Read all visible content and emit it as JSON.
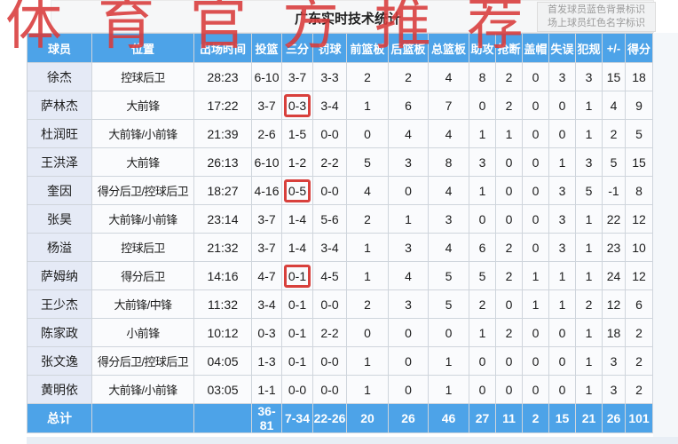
{
  "watermark": "体育官方推荐",
  "header": {
    "title": "广东实时技术统计",
    "legend": [
      "首发球员蓝色背景标识",
      "场上球员红色名字标识"
    ]
  },
  "colors": {
    "accent": "#4da3e8",
    "highlight_red": "#d8403c",
    "name_cell_bg": "#e5eaf6",
    "watermark_red": "#d93b3b"
  },
  "table": {
    "columns": [
      "球员",
      "位置",
      "出场时间",
      "投篮",
      "三分",
      "罚球",
      "前篮板",
      "后篮板",
      "总篮板",
      "助攻",
      "抢断",
      "盖帽",
      "失误",
      "犯规",
      "+/-",
      "得分"
    ],
    "rows": [
      {
        "name": "徐杰",
        "position": "控球后卫",
        "time": "28:23",
        "fg": "6-10",
        "three": "3-7",
        "three_box": false,
        "ft": "3-3",
        "oreb": "2",
        "dreb": "2",
        "reb": "4",
        "ast": "8",
        "stl": "2",
        "blk": "0",
        "to": "3",
        "pf": "3",
        "pm": "15",
        "pts": "18"
      },
      {
        "name": "萨林杰",
        "position": "大前锋",
        "time": "17:22",
        "fg": "3-7",
        "three": "0-3",
        "three_box": true,
        "ft": "3-4",
        "oreb": "1",
        "dreb": "6",
        "reb": "7",
        "ast": "0",
        "stl": "2",
        "blk": "0",
        "to": "0",
        "pf": "1",
        "pm": "4",
        "pts": "9"
      },
      {
        "name": "杜润旺",
        "position": "大前锋/小前锋",
        "time": "21:39",
        "fg": "2-6",
        "three": "1-5",
        "three_box": false,
        "ft": "0-0",
        "oreb": "0",
        "dreb": "4",
        "reb": "4",
        "ast": "1",
        "stl": "1",
        "blk": "0",
        "to": "0",
        "pf": "1",
        "pm": "2",
        "pts": "5"
      },
      {
        "name": "王洪泽",
        "position": "大前锋",
        "time": "26:13",
        "fg": "6-10",
        "three": "1-2",
        "three_box": false,
        "ft": "2-2",
        "oreb": "5",
        "dreb": "3",
        "reb": "8",
        "ast": "3",
        "stl": "0",
        "blk": "0",
        "to": "1",
        "pf": "3",
        "pm": "5",
        "pts": "15"
      },
      {
        "name": "奎因",
        "position": "得分后卫/控球后卫",
        "time": "18:27",
        "fg": "4-16",
        "three": "0-5",
        "three_box": true,
        "ft": "0-0",
        "oreb": "4",
        "dreb": "0",
        "reb": "4",
        "ast": "1",
        "stl": "0",
        "blk": "0",
        "to": "3",
        "pf": "5",
        "pm": "-1",
        "pts": "8"
      },
      {
        "name": "张昊",
        "position": "大前锋/小前锋",
        "time": "23:14",
        "fg": "3-7",
        "three": "1-4",
        "three_box": false,
        "ft": "5-6",
        "oreb": "2",
        "dreb": "1",
        "reb": "3",
        "ast": "0",
        "stl": "0",
        "blk": "0",
        "to": "3",
        "pf": "1",
        "pm": "22",
        "pts": "12"
      },
      {
        "name": "杨溢",
        "position": "控球后卫",
        "time": "21:32",
        "fg": "3-7",
        "three": "1-4",
        "three_box": false,
        "ft": "3-4",
        "oreb": "1",
        "dreb": "3",
        "reb": "4",
        "ast": "6",
        "stl": "2",
        "blk": "0",
        "to": "3",
        "pf": "1",
        "pm": "23",
        "pts": "10"
      },
      {
        "name": "萨姆纳",
        "position": "得分后卫",
        "time": "14:16",
        "fg": "4-7",
        "three": "0-1",
        "three_box": true,
        "ft": "4-5",
        "oreb": "1",
        "dreb": "4",
        "reb": "5",
        "ast": "5",
        "stl": "2",
        "blk": "1",
        "to": "1",
        "pf": "1",
        "pm": "24",
        "pts": "12"
      },
      {
        "name": "王少杰",
        "position": "大前锋/中锋",
        "time": "11:32",
        "fg": "3-4",
        "three": "0-1",
        "three_box": false,
        "ft": "0-0",
        "oreb": "2",
        "dreb": "3",
        "reb": "5",
        "ast": "2",
        "stl": "0",
        "blk": "1",
        "to": "1",
        "pf": "2",
        "pm": "12",
        "pts": "6"
      },
      {
        "name": "陈家政",
        "position": "小前锋",
        "time": "10:12",
        "fg": "0-3",
        "three": "0-1",
        "three_box": false,
        "ft": "2-2",
        "oreb": "0",
        "dreb": "0",
        "reb": "0",
        "ast": "1",
        "stl": "2",
        "blk": "0",
        "to": "0",
        "pf": "1",
        "pm": "18",
        "pts": "2"
      },
      {
        "name": "张文逸",
        "position": "得分后卫/控球后卫",
        "time": "04:05",
        "fg": "1-3",
        "three": "0-1",
        "three_box": false,
        "ft": "0-0",
        "oreb": "1",
        "dreb": "0",
        "reb": "1",
        "ast": "0",
        "stl": "0",
        "blk": "0",
        "to": "0",
        "pf": "1",
        "pm": "3",
        "pts": "2"
      },
      {
        "name": "黄明依",
        "position": "大前锋/小前锋",
        "time": "03:05",
        "fg": "1-1",
        "three": "0-0",
        "three_box": false,
        "ft": "0-0",
        "oreb": "1",
        "dreb": "0",
        "reb": "1",
        "ast": "0",
        "stl": "0",
        "blk": "0",
        "to": "0",
        "pf": "1",
        "pm": "3",
        "pts": "2"
      }
    ],
    "total": {
      "name": "总计",
      "position": "",
      "time": "",
      "fg": "36-81",
      "three": "7-34",
      "ft": "22-26",
      "oreb": "20",
      "dreb": "26",
      "reb": "46",
      "ast": "27",
      "stl": "11",
      "blk": "2",
      "to": "15",
      "pf": "21",
      "pm": "26",
      "pts": "101"
    }
  }
}
